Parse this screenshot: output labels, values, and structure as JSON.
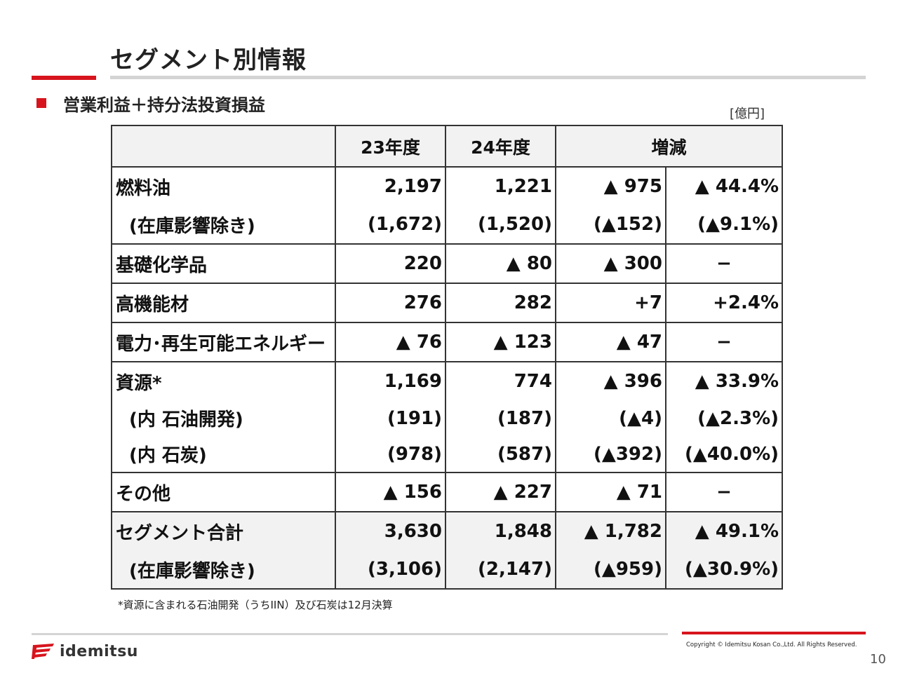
{
  "title": "セグメント別情報",
  "section_title": "営業利益＋持分法投資損益",
  "unit": "[億円]",
  "table": {
    "headers": [
      "",
      "23年度",
      "24年度",
      "増減"
    ],
    "rows": [
      {
        "label": "燃料油",
        "fy23": "2,197",
        "fy24": "1,221",
        "diff": "▲ 975",
        "pct": "▲ 44.4%"
      },
      {
        "label": "(在庫影響除き)",
        "fy23": "(1,672)",
        "fy24": "(1,520)",
        "diff": "(▲152)",
        "pct": "(▲9.1%)"
      },
      {
        "label": "基礎化学品",
        "fy23": "220",
        "fy24": "▲ 80",
        "diff": "▲ 300",
        "pct": "−"
      },
      {
        "label": "高機能材",
        "fy23": "276",
        "fy24": "282",
        "diff": "+7",
        "pct": "+2.4%"
      },
      {
        "label": "電力･再生可能エネルギー",
        "fy23": "▲ 76",
        "fy24": "▲ 123",
        "diff": "▲ 47",
        "pct": "−"
      },
      {
        "label": "資源*",
        "fy23": "1,169",
        "fy24": "774",
        "diff": "▲ 396",
        "pct": "▲ 33.9%"
      },
      {
        "label": "(内 石油開発)",
        "fy23": "(191)",
        "fy24": "(187)",
        "diff": "(▲4)",
        "pct": "(▲2.3%)"
      },
      {
        "label": "(内 石炭)",
        "fy23": "(978)",
        "fy24": "(587)",
        "diff": "(▲392)",
        "pct": "(▲40.0%)"
      },
      {
        "label": "その他",
        "fy23": "▲ 156",
        "fy24": "▲ 227",
        "diff": "▲ 71",
        "pct": "−"
      },
      {
        "label": "セグメント合計",
        "fy23": "3,630",
        "fy24": "1,848",
        "diff": "▲ 1,782",
        "pct": "▲ 49.1%"
      },
      {
        "label": "(在庫影響除き)",
        "fy23": "(3,106)",
        "fy24": "(2,147)",
        "diff": "(▲959)",
        "pct": "(▲30.9%)"
      }
    ]
  },
  "footnote": "*資源に含まれる石油開発（うちIIN）及び石炭は12月決算",
  "logo_text": "idemitsu",
  "copyright": "Copyright © Idemitsu Kosan Co.,Ltd.  All Rights Reserved.",
  "page_number": "10",
  "colors": {
    "accent": "#d7141d",
    "header_bg": "#f2f2f2",
    "rule_gray": "#d4d4d4"
  }
}
